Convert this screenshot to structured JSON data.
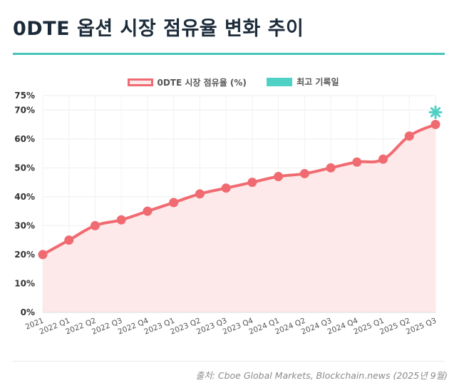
{
  "page": {
    "title": "0DTE 옵션 시장 점유율 변화 추이",
    "source": "출처: Cboe Global Markets, Blockchain.news (2025년 9월)"
  },
  "legend": {
    "items": [
      {
        "label": "0DTE 시장 점유율 (%)"
      },
      {
        "label": "최고 기록일"
      }
    ]
  },
  "colors": {
    "line": "#f06b71",
    "fill": "#fde9ea",
    "record": "#4fd1c5",
    "accent": "#45c4b8"
  },
  "chart_data": {
    "type": "line",
    "title": "",
    "xlabel": "",
    "ylabel": "",
    "categories": [
      "2021",
      "2022 Q1",
      "2022 Q2",
      "2022 Q3",
      "2022 Q4",
      "2023 Q1",
      "2023 Q2",
      "2023 Q3",
      "2023 Q4",
      "2024 Q1",
      "2024 Q2",
      "2024 Q3",
      "2024 Q4",
      "2025 Q1",
      "2025 Q2",
      "2025 Q3"
    ],
    "series": [
      {
        "name": "0DTE 시장 점유율 (%)",
        "values": [
          20,
          25,
          30,
          32,
          35,
          38,
          41,
          43,
          45,
          47,
          48,
          50,
          52,
          53,
          61,
          65
        ]
      }
    ],
    "record": {
      "category": "2025 Q3",
      "value": 69
    },
    "y_ticks": [
      "0%",
      "10%",
      "20%",
      "30%",
      "40%",
      "50%",
      "60%",
      "70%",
      "75%"
    ],
    "y_tick_values": [
      0,
      10,
      20,
      30,
      40,
      50,
      60,
      70,
      75
    ],
    "ylim": [
      0,
      75
    ],
    "grid": true,
    "legend_position": "top"
  }
}
